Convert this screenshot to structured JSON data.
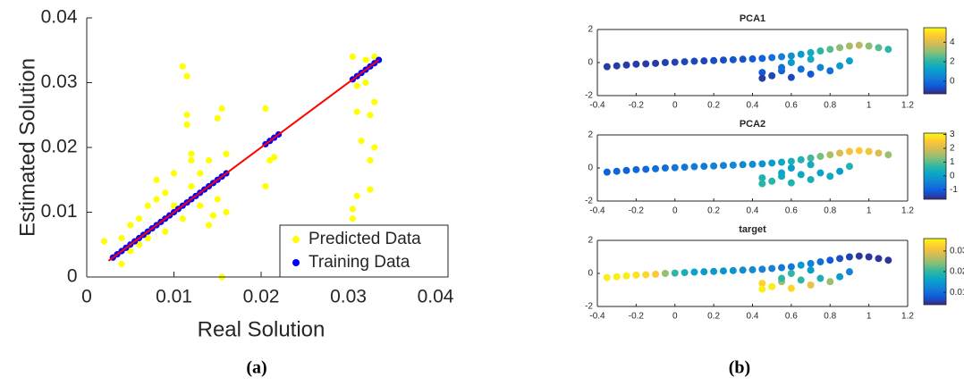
{
  "chart_data": [
    {
      "type": "scatter",
      "xlabel": "Real Solution",
      "ylabel": "Estimated Solution",
      "xlim": [
        0,
        0.04
      ],
      "ylim": [
        0,
        0.04
      ],
      "xticks": [
        0,
        0.01,
        0.02,
        0.03,
        0.04
      ],
      "yticks": [
        0,
        0.01,
        0.02,
        0.03,
        0.04
      ],
      "legend": "lower right",
      "series": [
        {
          "name": "Predicted Data",
          "color": "#ffff00",
          "x": [
            0.002,
            0.003,
            0.004,
            0.004,
            0.005,
            0.005,
            0.006,
            0.006,
            0.007,
            0.007,
            0.008,
            0.008,
            0.009,
            0.009,
            0.01,
            0.01,
            0.011,
            0.011,
            0.0115,
            0.0115,
            0.0115,
            0.012,
            0.012,
            0.012,
            0.013,
            0.013,
            0.014,
            0.014,
            0.015,
            0.015,
            0.0155,
            0.0155,
            0.016,
            0.016,
            0.0145,
            0.0205,
            0.0205,
            0.021,
            0.0215,
            0.0305,
            0.031,
            0.0305,
            0.031,
            0.0315,
            0.032,
            0.0325,
            0.0325,
            0.033,
            0.033,
            0.032,
            0.0325,
            0.031,
            0.0305,
            0.033
          ],
          "y": [
            0.0055,
            0.003,
            0.002,
            0.006,
            0.004,
            0.008,
            0.005,
            0.009,
            0.011,
            0.006,
            0.012,
            0.015,
            0.007,
            0.013,
            0.011,
            0.016,
            0.009,
            0.0325,
            0.031,
            0.025,
            0.0235,
            0.019,
            0.018,
            0.014,
            0.011,
            0.016,
            0.008,
            0.018,
            0.012,
            0.0245,
            0.026,
            0.0,
            0.019,
            0.01,
            0.0095,
            0.026,
            0.014,
            0.018,
            0.0185,
            0.034,
            0.0295,
            0.009,
            0.0255,
            0.021,
            0.03,
            0.025,
            0.018,
            0.02,
            0.034,
            0.0335,
            0.0135,
            0.0125,
            0.0105,
            0.027
          ]
        },
        {
          "name": "Training Data",
          "color": "#0000ff",
          "x": [
            0.003,
            0.0035,
            0.004,
            0.0045,
            0.005,
            0.0055,
            0.006,
            0.0065,
            0.007,
            0.0075,
            0.008,
            0.0085,
            0.009,
            0.0095,
            0.01,
            0.0105,
            0.011,
            0.0115,
            0.012,
            0.0125,
            0.013,
            0.0135,
            0.014,
            0.0145,
            0.015,
            0.0155,
            0.016,
            0.0205,
            0.021,
            0.0215,
            0.022,
            0.0305,
            0.031,
            0.0315,
            0.032,
            0.0325,
            0.033,
            0.0335
          ],
          "y": [
            0.003,
            0.0035,
            0.004,
            0.0045,
            0.005,
            0.0055,
            0.006,
            0.0065,
            0.007,
            0.0075,
            0.008,
            0.0085,
            0.009,
            0.0095,
            0.01,
            0.0105,
            0.011,
            0.0115,
            0.012,
            0.0125,
            0.013,
            0.0135,
            0.014,
            0.0145,
            0.015,
            0.0155,
            0.016,
            0.0205,
            0.021,
            0.0215,
            0.022,
            0.0305,
            0.031,
            0.0315,
            0.032,
            0.0325,
            0.033,
            0.0335
          ]
        },
        {
          "mode": "line",
          "color": "#ff0000",
          "x": [
            0.0025,
            0.0335
          ],
          "y": [
            0.0025,
            0.0335
          ]
        }
      ]
    },
    {
      "type": "scatter",
      "title": "PCA1",
      "xlim": [
        -0.4,
        1.2
      ],
      "ylim": [
        -2,
        2
      ],
      "xticks": [
        -0.4,
        -0.2,
        0,
        0.2,
        0.4,
        0.6,
        0.8,
        1,
        1.2
      ],
      "yticks": [
        -2,
        0,
        2
      ],
      "clim": [
        -1.3,
        5.5
      ],
      "cticks": [
        0,
        2,
        4
      ],
      "x": [
        -0.35,
        -0.3,
        -0.25,
        -0.2,
        -0.15,
        -0.1,
        -0.05,
        0,
        0.05,
        0.1,
        0.15,
        0.2,
        0.25,
        0.3,
        0.35,
        0.4,
        0.45,
        0.5,
        0.55,
        0.6,
        0.65,
        0.7,
        0.75,
        0.8,
        0.85,
        0.9,
        0.95,
        1.0,
        1.05,
        1.1,
        0.45,
        0.5,
        0.55,
        0.6,
        0.65,
        0.7,
        0.75,
        0.8,
        0.85,
        0.9,
        0.6,
        0.7,
        0.45,
        0.55
      ],
      "y": [
        -0.25,
        -0.2,
        -0.15,
        -0.1,
        -0.08,
        -0.05,
        0,
        0.02,
        0.05,
        0.08,
        0.1,
        0.12,
        0.15,
        0.17,
        0.2,
        0.22,
        0.25,
        0.3,
        0.35,
        0.4,
        0.5,
        0.6,
        0.7,
        0.8,
        0.9,
        1.0,
        1.05,
        1.0,
        0.9,
        0.8,
        -0.6,
        -0.8,
        -0.5,
        -0.9,
        -0.4,
        -0.7,
        -0.3,
        -0.5,
        -0.2,
        0.1,
        0.0,
        0.2,
        -0.95,
        -0.3
      ],
      "c": [
        -1,
        -1,
        -1,
        -1,
        -1,
        -1,
        -0.9,
        -0.9,
        -0.8,
        -0.8,
        -0.8,
        -0.7,
        -0.7,
        -0.6,
        -0.6,
        -0.5,
        -0.3,
        0,
        0.3,
        0.8,
        1,
        1.5,
        2,
        2.5,
        3,
        3.3,
        3.5,
        3,
        2.5,
        2,
        -0.5,
        -0.8,
        -0.3,
        -0.8,
        0,
        -0.5,
        0.5,
        0,
        1,
        1.2,
        1,
        1.5,
        -1,
        0
      ]
    },
    {
      "type": "scatter",
      "title": "PCA2",
      "xlim": [
        -0.4,
        1.2
      ],
      "ylim": [
        -2,
        2
      ],
      "xticks": [
        -0.4,
        -0.2,
        0,
        0.2,
        0.4,
        0.6,
        0.8,
        1,
        1.2
      ],
      "yticks": [
        -2,
        0,
        2
      ],
      "clim": [
        -1.7,
        3.1
      ],
      "cticks": [
        -1,
        0,
        1,
        2,
        3
      ],
      "x": [
        -0.35,
        -0.3,
        -0.25,
        -0.2,
        -0.15,
        -0.1,
        -0.05,
        0,
        0.05,
        0.1,
        0.15,
        0.2,
        0.25,
        0.3,
        0.35,
        0.4,
        0.45,
        0.5,
        0.55,
        0.6,
        0.65,
        0.7,
        0.75,
        0.8,
        0.85,
        0.9,
        0.95,
        1.0,
        1.05,
        1.1,
        0.45,
        0.5,
        0.55,
        0.6,
        0.65,
        0.7,
        0.75,
        0.8,
        0.85,
        0.9,
        0.6,
        0.7,
        0.45,
        0.55
      ],
      "y": [
        -0.25,
        -0.2,
        -0.15,
        -0.1,
        -0.08,
        -0.05,
        0,
        0.02,
        0.05,
        0.08,
        0.1,
        0.12,
        0.15,
        0.17,
        0.2,
        0.22,
        0.25,
        0.3,
        0.35,
        0.4,
        0.5,
        0.6,
        0.7,
        0.8,
        0.9,
        1.0,
        1.05,
        1.0,
        0.9,
        0.8,
        -0.6,
        -0.8,
        -0.5,
        -0.9,
        -0.4,
        -0.7,
        -0.3,
        -0.5,
        -0.2,
        0.1,
        0.0,
        0.2,
        -0.95,
        -0.3
      ],
      "c": [
        -1,
        -1,
        -1,
        -0.9,
        -0.9,
        -0.8,
        -0.8,
        -0.7,
        -0.7,
        -0.6,
        -0.6,
        -0.5,
        -0.5,
        -0.4,
        -0.4,
        -0.3,
        -0.2,
        0,
        0.2,
        0.4,
        0.5,
        0.8,
        1.2,
        1.6,
        2,
        2.3,
        2.5,
        2.3,
        2,
        1.5,
        0.5,
        0.6,
        0.3,
        0.5,
        0.2,
        0.4,
        0.1,
        0.3,
        0,
        0.5,
        0,
        0.3,
        0.6,
        0.2
      ]
    },
    {
      "type": "scatter",
      "title": "target",
      "xlim": [
        -0.4,
        1.2
      ],
      "ylim": [
        -2,
        2
      ],
      "xticks": [
        -0.4,
        -0.2,
        0,
        0.2,
        0.4,
        0.6,
        0.8,
        1,
        1.2
      ],
      "yticks": [
        -2,
        0,
        2
      ],
      "clim": [
        0.004,
        0.036
      ],
      "cticks": [
        0.01,
        0.02,
        0.03
      ],
      "x": [
        -0.35,
        -0.3,
        -0.25,
        -0.2,
        -0.15,
        -0.1,
        -0.05,
        0,
        0.05,
        0.1,
        0.15,
        0.2,
        0.25,
        0.3,
        0.35,
        0.4,
        0.45,
        0.5,
        0.55,
        0.6,
        0.65,
        0.7,
        0.75,
        0.8,
        0.85,
        0.9,
        0.95,
        1.0,
        1.05,
        1.1,
        0.45,
        0.5,
        0.55,
        0.6,
        0.65,
        0.7,
        0.75,
        0.8,
        0.85,
        0.9,
        0.6,
        0.7,
        0.45,
        0.55
      ],
      "y": [
        -0.25,
        -0.2,
        -0.15,
        -0.1,
        -0.08,
        -0.05,
        0,
        0.02,
        0.05,
        0.08,
        0.1,
        0.12,
        0.15,
        0.17,
        0.2,
        0.22,
        0.25,
        0.3,
        0.35,
        0.4,
        0.5,
        0.6,
        0.7,
        0.8,
        0.9,
        1.0,
        1.05,
        1.0,
        0.9,
        0.8,
        -0.6,
        -0.8,
        -0.5,
        -0.9,
        -0.4,
        -0.7,
        -0.3,
        -0.5,
        -0.2,
        0.1,
        0.0,
        0.2,
        -0.95,
        -0.3
      ],
      "c": [
        0.035,
        0.035,
        0.035,
        0.034,
        0.033,
        0.032,
        0.025,
        0.02,
        0.018,
        0.016,
        0.015,
        0.015,
        0.014,
        0.014,
        0.013,
        0.013,
        0.012,
        0.012,
        0.011,
        0.011,
        0.015,
        0.012,
        0.01,
        0.008,
        0.007,
        0.006,
        0.005,
        0.005,
        0.005,
        0.005,
        0.033,
        0.035,
        0.025,
        0.033,
        0.02,
        0.03,
        0.018,
        0.025,
        0.015,
        0.012,
        0.02,
        0.015,
        0.035,
        0.02
      ]
    }
  ],
  "colormap": [
    "#352a87",
    "#0f5cdd",
    "#1481d6",
    "#06a4ca",
    "#2eb7a4",
    "#87bf77",
    "#d1bb59",
    "#fec832",
    "#f9fb0e"
  ],
  "captions": [
    "(a)",
    "(b)"
  ]
}
